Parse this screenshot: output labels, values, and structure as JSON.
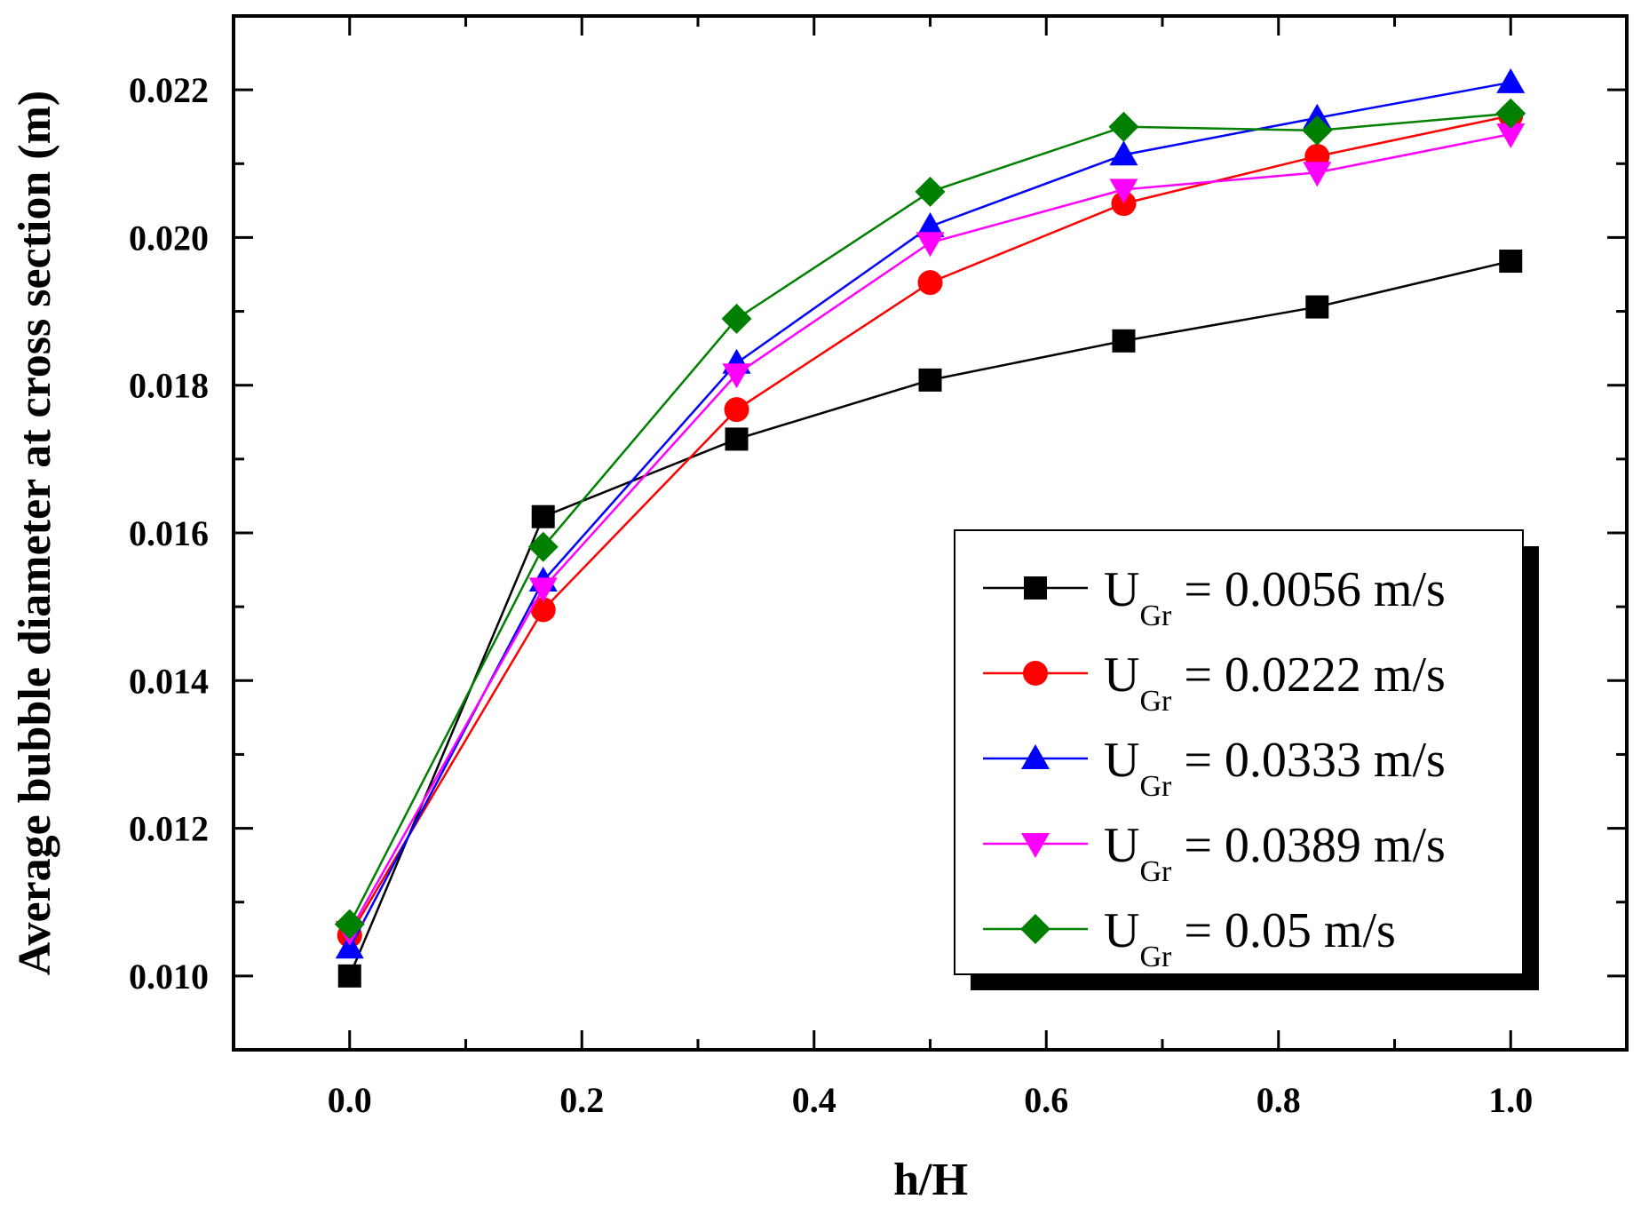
{
  "chart_data": {
    "type": "line",
    "title": "",
    "xlabel": "h/H",
    "ylabel": "Average bubble diameter at cross section (m)",
    "xlim": [
      -0.1,
      1.1
    ],
    "ylim": [
      0.009,
      0.023
    ],
    "xticks": [
      0.0,
      0.2,
      0.4,
      0.6,
      0.8,
      1.0
    ],
    "xtick_labels": [
      "0.0",
      "0.2",
      "0.4",
      "0.6",
      "0.8",
      "1.0"
    ],
    "yticks": [
      0.01,
      0.012,
      0.014,
      0.016,
      0.018,
      0.02,
      0.022
    ],
    "ytick_labels": [
      "0.010",
      "0.012",
      "0.014",
      "0.016",
      "0.018",
      "0.020",
      "0.022"
    ],
    "grid": false,
    "legend_position": "bottom-right",
    "x": [
      0.0,
      0.1667,
      0.3333,
      0.5,
      0.6667,
      0.8333,
      1.0
    ],
    "series": [
      {
        "name": "U_Gr = 0.0056 m/s",
        "label_main": "U",
        "label_sub": "Gr",
        "label_rest": " = 0.0056 m/s",
        "color": "#000000",
        "marker": "square",
        "values": [
          0.01,
          0.01622,
          0.01727,
          0.01807,
          0.0186,
          0.01906,
          0.01968
        ]
      },
      {
        "name": "U_Gr = 0.0222 m/s",
        "label_main": "U",
        "label_sub": "Gr",
        "label_rest": " = 0.0222 m/s",
        "color": "#ff0000",
        "marker": "circle",
        "values": [
          0.01055,
          0.01496,
          0.01767,
          0.01939,
          0.02046,
          0.0211,
          0.02165
        ]
      },
      {
        "name": "U_Gr = 0.0333 m/s",
        "label_main": "U",
        "label_sub": "Gr",
        "label_rest": " = 0.0333 m/s",
        "color": "#0000ff",
        "marker": "triangle-up",
        "values": [
          0.01038,
          0.01535,
          0.0183,
          0.02015,
          0.02112,
          0.02162,
          0.0221
        ]
      },
      {
        "name": "U_Gr = 0.0389 m/s",
        "label_main": "U",
        "label_sub": "Gr",
        "label_rest": " = 0.0389 m/s",
        "color": "#ff00ff",
        "marker": "triangle-down",
        "values": [
          0.0106,
          0.01525,
          0.01815,
          0.01993,
          0.02065,
          0.02088,
          0.0214
        ]
      },
      {
        "name": "U_Gr = 0.05 m/s",
        "label_main": "U",
        "label_sub": "Gr",
        "label_rest": " = 0.05 m/s",
        "color": "#008000",
        "marker": "diamond",
        "values": [
          0.0107,
          0.01581,
          0.0189,
          0.02062,
          0.0215,
          0.02145,
          0.02168
        ]
      }
    ]
  }
}
